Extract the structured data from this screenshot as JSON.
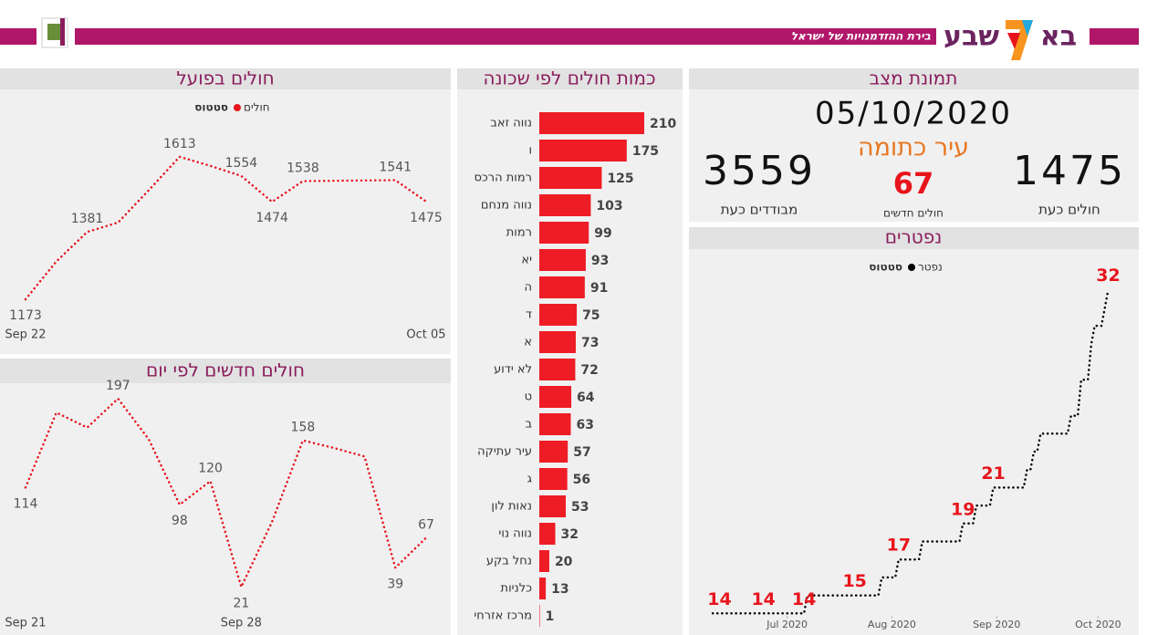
{
  "header": {
    "logo_left": "בא",
    "logo_right": "שבע",
    "tagline": "בירת ההזדמנויות של ישראל"
  },
  "snapshot": {
    "title": "תמונת מצב",
    "date": "05/10/2020",
    "city": "עיר כתומה",
    "new_cases": 67,
    "new_cases_label": "חולים חדשים",
    "isolated": 3559,
    "isolated_label": "מבודדים כעת",
    "active": 1475,
    "active_label": "חולים כעת"
  },
  "chart_data": [
    {
      "type": "line",
      "title": "חולים בפועל",
      "legend_title": "סטטוס",
      "categories": [
        "Sep 22",
        null,
        null,
        null,
        null,
        null,
        null,
        null,
        null,
        null,
        null,
        null,
        null,
        "Oct 05"
      ],
      "series": [
        {
          "name": "חולים",
          "color": "#e8141c",
          "values": [
            1173,
            1290,
            1381,
            1410,
            1510,
            1613,
            1585,
            1554,
            1474,
            1538,
            1539,
            1540,
            1541,
            1475
          ],
          "value_labels": [
            "1173",
            null,
            "1381",
            null,
            null,
            "1613",
            null,
            "1554",
            "1474",
            "1538",
            null,
            null,
            "1541",
            "1475"
          ]
        }
      ],
      "ylim": [
        1100,
        1700
      ]
    },
    {
      "type": "line",
      "title": "חולים חדשים לפי יום",
      "categories": [
        "Sep 21",
        null,
        null,
        null,
        null,
        null,
        null,
        "Sep 28",
        null,
        null,
        null,
        null,
        null,
        null
      ],
      "series": [
        {
          "name": "חולים חדשים",
          "color": "#e8141c",
          "values": [
            114,
            184,
            170,
            197,
            159,
            98,
            120,
            21,
            82,
            158,
            151,
            143,
            39,
            67
          ],
          "value_labels": [
            "114",
            null,
            null,
            "197",
            null,
            "98",
            "120",
            "21",
            null,
            "158",
            null,
            null,
            "39",
            "67"
          ]
        }
      ],
      "ylim": [
        0,
        220
      ]
    },
    {
      "type": "bar",
      "title": "כמות חולים לפי שכונה",
      "categories": [
        "נווה זאב",
        "ו",
        "רמות הרכס",
        "נווה מנחם",
        "רמות",
        "יא",
        "ה",
        "ד",
        "א",
        "לא ידוע",
        "ט",
        "ב",
        "עיר עתיקה",
        "ג",
        "נאות לון",
        "נווה נוי",
        "נחל בקע",
        "כלניות",
        "מרכז אזרחי"
      ],
      "values": [
        210,
        175,
        125,
        103,
        99,
        93,
        91,
        75,
        73,
        72,
        64,
        63,
        57,
        56,
        53,
        32,
        20,
        13,
        1
      ],
      "color": "#ee1c25",
      "xlim": [
        0,
        210
      ]
    },
    {
      "type": "step",
      "title": "נפטרים",
      "legend_title": "סטטוס",
      "x": [
        -22,
        -20,
        -7,
        5,
        6,
        20,
        27,
        28,
        32,
        33,
        39,
        40,
        51,
        52,
        55,
        56,
        60,
        61,
        70,
        71,
        72,
        73,
        74,
        75,
        83,
        84,
        86,
        87,
        89,
        90,
        91,
        93,
        94,
        95
      ],
      "series": [
        {
          "name": "נפטר",
          "color": "#000000",
          "values": [
            14,
            14,
            14,
            14,
            15,
            15,
            15,
            16,
            16,
            17,
            17,
            18,
            18,
            19,
            19,
            20,
            20,
            21,
            21,
            22,
            22,
            23,
            23,
            24,
            24,
            25,
            25,
            27,
            27,
            29,
            30,
            30,
            31,
            32
          ],
          "value_labels": [
            null,
            "14",
            "14",
            "14",
            null,
            "15",
            null,
            null,
            null,
            "17",
            null,
            null,
            null,
            "19",
            null,
            null,
            null,
            "21",
            null,
            null,
            null,
            null,
            null,
            null,
            null,
            null,
            null,
            null,
            null,
            null,
            null,
            null,
            null,
            "32"
          ]
        }
      ],
      "xlim": [
        -25,
        100
      ],
      "xticks": [
        {
          "value": 0,
          "label": "Jul 2020"
        },
        {
          "value": 31,
          "label": "Aug 2020"
        },
        {
          "value": 62,
          "label": "Sep 2020"
        },
        {
          "value": 92,
          "label": "Oct 2020"
        }
      ],
      "ylim": [
        13,
        33
      ],
      "label_color": "#e8141c"
    }
  ]
}
